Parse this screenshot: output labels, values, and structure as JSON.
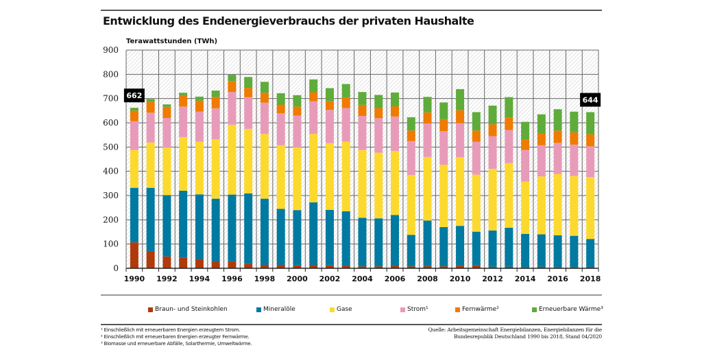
{
  "chart_data": {
    "type": "bar",
    "stacked": true,
    "title": "Entwicklung des Endenergieverbrauchs der privaten Haushalte",
    "ylabel": "Terawattstunden (TWh)",
    "xlabel": "",
    "ylim": [
      0,
      900
    ],
    "yticks": [
      "0",
      "100",
      "200",
      "300",
      "400",
      "500",
      "600",
      "700",
      "800",
      "900"
    ],
    "grid": true,
    "legend_position": "bottom",
    "categories": [
      "1990",
      "1991",
      "1992",
      "1993",
      "1994",
      "1995",
      "1996",
      "1997",
      "1998",
      "1999",
      "2000",
      "2001",
      "2002",
      "2003",
      "2004",
      "2005",
      "2006",
      "2007",
      "2008",
      "2009",
      "2010",
      "2011",
      "2012",
      "2013",
      "2014",
      "2015",
      "2016",
      "2017",
      "2018"
    ],
    "xtick_labels": [
      "1990",
      "",
      "1992",
      "",
      "1994",
      "",
      "1996",
      "",
      "1998",
      "",
      "2000",
      "",
      "2002",
      "",
      "2004",
      "",
      "2006",
      "",
      "2008",
      "",
      "2010",
      "",
      "2012",
      "",
      "2014",
      "",
      "2016",
      "",
      "2018"
    ],
    "series": [
      {
        "name": "Braun- und Steinkohlen",
        "color": "#b03a0c",
        "values": [
          107,
          71,
          49,
          43,
          38,
          27,
          28,
          18,
          14,
          14,
          12,
          14,
          12,
          10,
          8,
          8,
          10,
          8,
          9,
          8,
          11,
          12,
          6,
          6,
          5,
          6,
          5,
          5,
          4
        ]
      },
      {
        "name": "Mineralöle",
        "color": "#007aa0",
        "values": [
          225,
          261,
          253,
          277,
          267,
          260,
          276,
          291,
          273,
          231,
          228,
          258,
          229,
          225,
          200,
          198,
          210,
          130,
          188,
          162,
          164,
          139,
          150,
          161,
          137,
          134,
          131,
          129,
          117
        ]
      },
      {
        "name": "Gase",
        "color": "#fcd92f",
        "values": [
          156,
          187,
          195,
          221,
          217,
          245,
          288,
          266,
          267,
          262,
          259,
          282,
          275,
          287,
          280,
          271,
          264,
          247,
          262,
          257,
          283,
          235,
          254,
          267,
          216,
          239,
          253,
          247,
          255
        ]
      },
      {
        "name": "Strom¹",
        "color": "#e89bb9",
        "values": [
          119,
          123,
          123,
          126,
          124,
          128,
          135,
          131,
          129,
          132,
          131,
          135,
          137,
          139,
          140,
          142,
          142,
          140,
          138,
          139,
          141,
          136,
          135,
          136,
          130,
          129,
          128,
          129,
          127
        ]
      },
      {
        "name": "Fernwärme²",
        "color": "#ef7b00",
        "values": [
          43,
          45,
          46,
          45,
          45,
          47,
          45,
          38,
          41,
          36,
          37,
          37,
          37,
          44,
          46,
          42,
          42,
          43,
          46,
          49,
          53,
          46,
          49,
          52,
          42,
          47,
          51,
          51,
          50
        ]
      },
      {
        "name": "Erneuerbare Wärme³",
        "color": "#5fac3a",
        "values": [
          12,
          11,
          10,
          12,
          17,
          26,
          26,
          45,
          45,
          47,
          47,
          53,
          53,
          55,
          53,
          54,
          57,
          55,
          64,
          69,
          87,
          76,
          77,
          84,
          74,
          80,
          88,
          85,
          91
        ]
      }
    ],
    "annotations": [
      {
        "category": "1990",
        "text": "662"
      },
      {
        "category": "2018",
        "text": "644"
      }
    ]
  },
  "header": {
    "title": "Entwicklung des Endenergieverbrauchs der privaten Haushalte"
  },
  "legend": [
    {
      "label": "Braun- und Steinkohlen",
      "color": "#b03a0c"
    },
    {
      "label": "Mineralöle",
      "color": "#007aa0"
    },
    {
      "label": "Gase",
      "color": "#fcd92f"
    },
    {
      "label": "Strom¹",
      "color": "#e89bb9"
    },
    {
      "label": "Fernwärme²",
      "color": "#ef7b00"
    },
    {
      "label": "Erneuerbare Wärme³",
      "color": "#5fac3a"
    }
  ],
  "footnotes": [
    "¹ Einschließlich mit erneuerbaren Energien erzeugtem Strom.",
    "² Einschließlich mit erneuerbaren Energien erzeugter Fernwärme.",
    "³ Biomasse und erneuerbare Abfälle, Solarthermie, Umweltwärme."
  ],
  "source": {
    "line1": "Quelle: Arbeitsgemeinschaft Energiebilanzen, Energiebilanzen für die",
    "line2": "Bundesrepublik Deutschland 1990 bis 2018, Stand 04/2020"
  }
}
